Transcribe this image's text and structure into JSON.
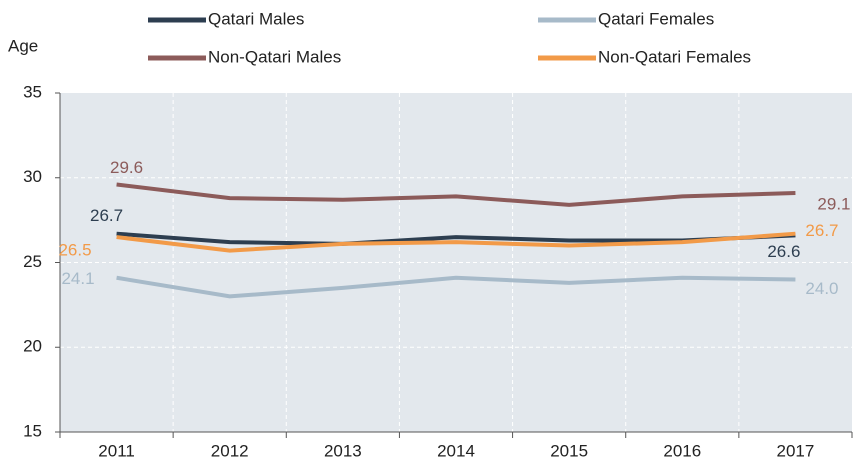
{
  "chart_data": {
    "type": "line",
    "y_label": "Age",
    "categories": [
      "2011",
      "2012",
      "2013",
      "2014",
      "2015",
      "2016",
      "2017"
    ],
    "series": [
      {
        "name": "Qatari Males",
        "color": "#2d3e50",
        "values": [
          26.7,
          26.2,
          26.1,
          26.5,
          26.3,
          26.3,
          26.6
        ],
        "value_labels": [
          "26.7",
          null,
          null,
          null,
          null,
          null,
          "26.6"
        ]
      },
      {
        "name": "Qatari Females",
        "color": "#a7bac9",
        "values": [
          24.1,
          23.0,
          23.5,
          24.1,
          23.8,
          24.1,
          24.0
        ],
        "value_labels": [
          "24.1",
          null,
          null,
          null,
          null,
          null,
          "24.0"
        ]
      },
      {
        "name": "Non-Qatari Males",
        "color": "#8c5b5a",
        "values": [
          29.6,
          28.8,
          28.7,
          28.9,
          28.4,
          28.9,
          29.1
        ],
        "value_labels": [
          "29.6",
          null,
          null,
          null,
          null,
          null,
          "29.1"
        ]
      },
      {
        "name": "Non-Qatari Females",
        "color": "#f29a48",
        "values": [
          26.5,
          25.7,
          26.1,
          26.2,
          26.0,
          26.2,
          26.7
        ],
        "value_labels": [
          "26.5",
          null,
          null,
          null,
          null,
          null,
          "26.7"
        ]
      }
    ],
    "ylim": [
      15,
      35
    ],
    "yticks": [
      15,
      20,
      25,
      30,
      35
    ],
    "grid": true
  }
}
